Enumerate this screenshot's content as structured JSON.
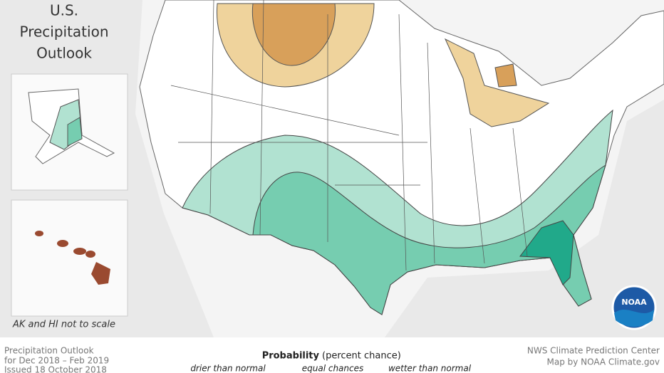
{
  "title": [
    "U.S.",
    "Precipitation",
    "Outlook"
  ],
  "inset_note": "AK and HI not to scale",
  "logo": "NOAA",
  "footer": {
    "left": [
      "Precipitation Outlook",
      "for Dec 2018 – Feb 2019",
      "Issued 18 October 2018"
    ],
    "legend": {
      "title": "Probability",
      "subtitle": "(percent chance)",
      "labels": [
        "drier than normal",
        "equal chances",
        "wetter than normal"
      ]
    },
    "right": [
      "NWS Climate Prediction Center",
      "Map by NOAA Climate.gov"
    ]
  }
}
